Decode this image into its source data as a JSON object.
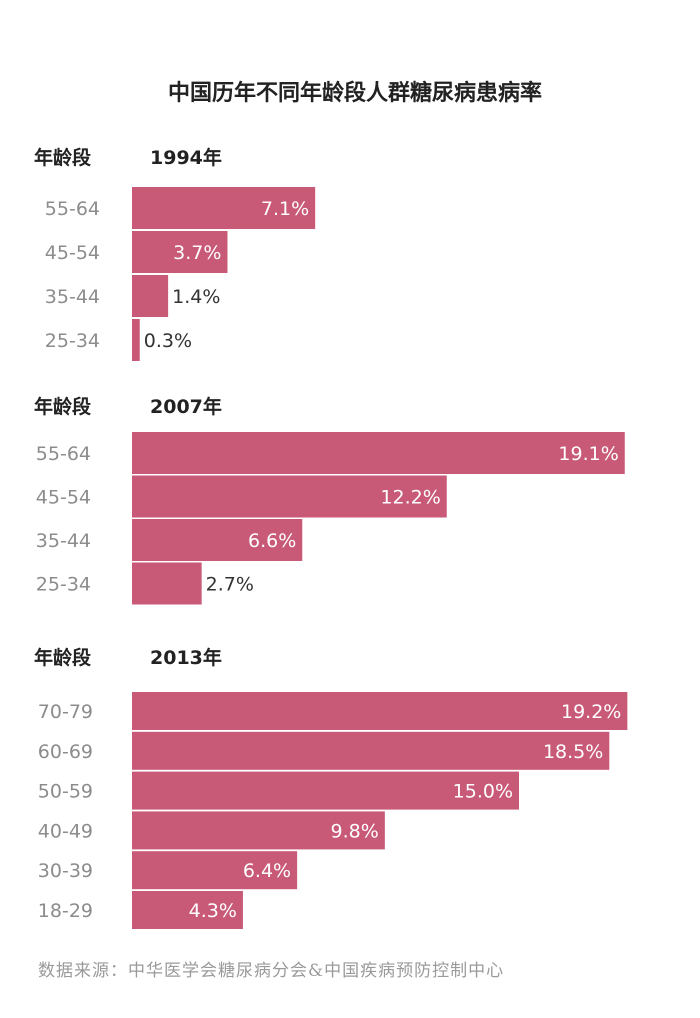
{
  "chart_data": {
    "title": "中国历年不同年龄段人群糖尿病患病率",
    "type": "bar",
    "bar_color": "#c85a78",
    "value_suffix": "%",
    "panels": [
      {
        "category_header": "年龄段",
        "year": "1994年",
        "categories": [
          "55-64",
          "45-54",
          "35-44",
          "25-34"
        ],
        "values": [
          7.1,
          3.7,
          1.4,
          0.3
        ]
      },
      {
        "category_header": "年龄段",
        "year": "2007年",
        "categories": [
          "55-64",
          "45-54",
          "35-44",
          "25-34"
        ],
        "values": [
          19.1,
          12.2,
          6.6,
          2.7
        ]
      },
      {
        "category_header": "年龄段",
        "year": "2013年",
        "categories": [
          "70-79",
          "60-69",
          "50-59",
          "40-49",
          "30-39",
          "18-29"
        ],
        "values": [
          19.2,
          18.5,
          15.0,
          9.8,
          6.4,
          4.3
        ]
      }
    ]
  },
  "source": "数据来源：中华医学会糖尿病分会&中国疾病预防控制中心"
}
